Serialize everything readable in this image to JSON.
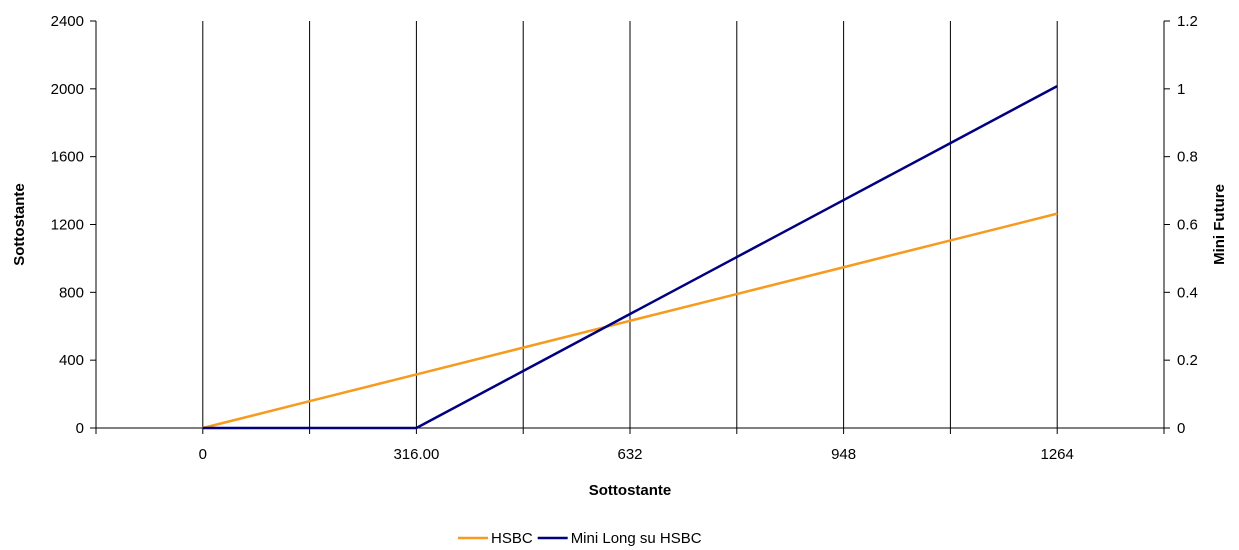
{
  "chart_data": {
    "type": "line",
    "x": [
      0,
      158,
      316,
      474,
      632,
      790,
      948,
      1106,
      1264
    ],
    "x_tick_labels": [
      "0",
      "316.00",
      "632",
      "948",
      "1264"
    ],
    "x_tick_values": [
      0,
      316,
      632,
      948,
      1264
    ],
    "xlabel": "Sottostante",
    "ylabel_left": "Sottostante",
    "ylabel_right": "Mini Future",
    "ylim_left": [
      0,
      2400
    ],
    "ylim_right": [
      0,
      1.2
    ],
    "y_ticks_left": [
      "0",
      "400",
      "800",
      "1200",
      "1600",
      "2000",
      "2400"
    ],
    "y_ticks_right": [
      "0",
      "0.2",
      "0.4",
      "0.6",
      "0.8",
      "1",
      "1.2"
    ],
    "series": [
      {
        "name": "HSBC",
        "axis": "left",
        "color": "#F79A1E",
        "values": [
          0,
          158,
          316,
          474,
          632,
          790,
          948,
          1106,
          1264
        ]
      },
      {
        "name": "Mini Long su HSBC",
        "axis": "right",
        "color": "#000080",
        "values": [
          0,
          0,
          0,
          0.168,
          0.336,
          0.504,
          0.672,
          0.84,
          1.008
        ]
      }
    ],
    "vertical_gridlines": true,
    "legend_position": "bottom"
  }
}
